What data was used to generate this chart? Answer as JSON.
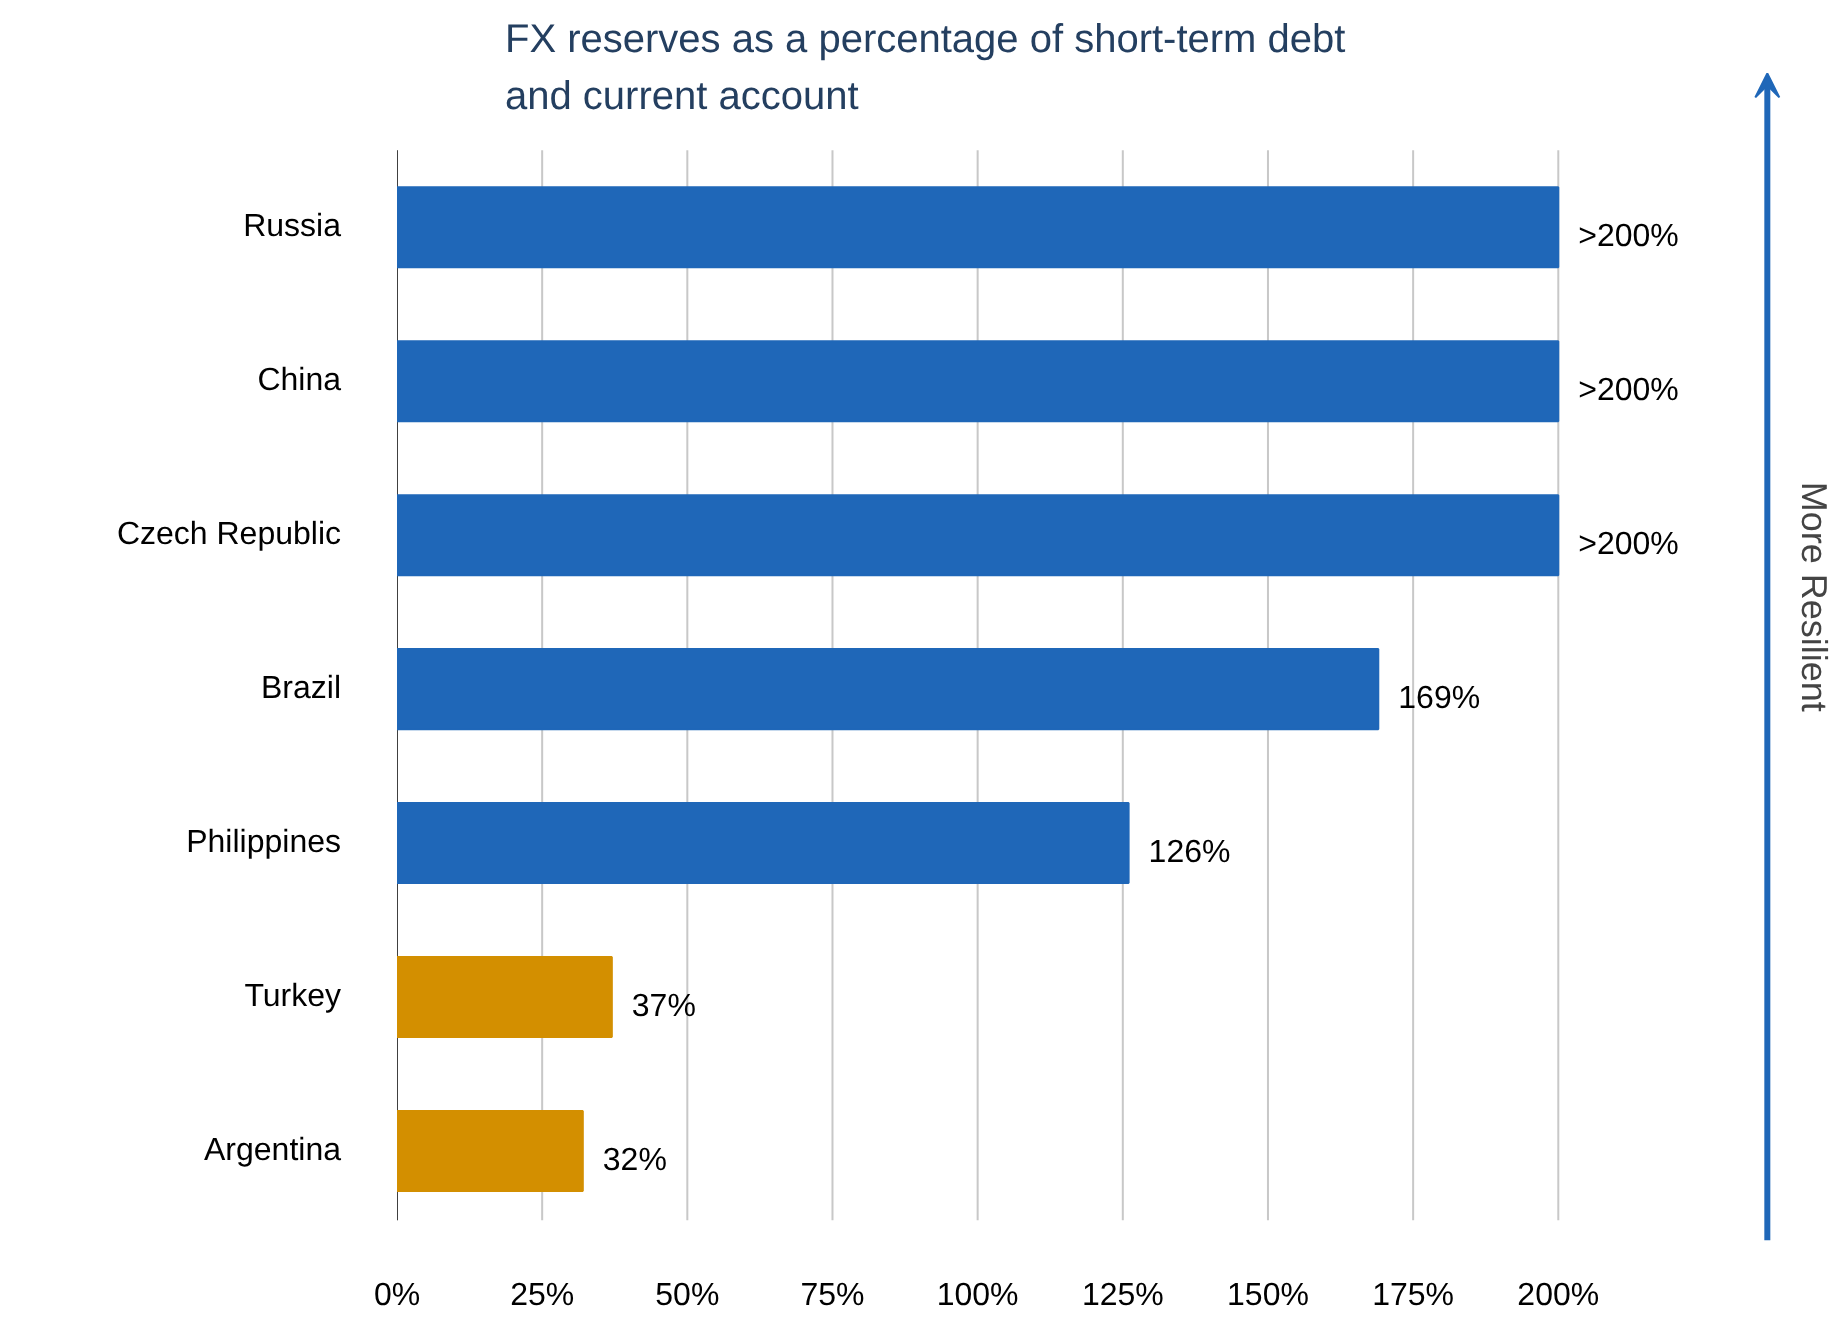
{
  "chart_data": {
    "type": "bar",
    "orientation": "horizontal",
    "title": "FX reserves as a percentage of short-term debt and current account",
    "categories": [
      "Russia",
      "China",
      "Czech Republic",
      "Brazil",
      "Philippines",
      "Turkey",
      "Argentina"
    ],
    "values": [
      200,
      200,
      200,
      169,
      126,
      37,
      32
    ],
    "value_labels": [
      ">200%",
      ">200%",
      ">200%",
      "169%",
      "126%",
      "37%",
      "32%"
    ],
    "colors": [
      "#1f67b8",
      "#1f67b8",
      "#1f67b8",
      "#1f67b8",
      "#1f67b8",
      "#d38f00",
      "#d38f00"
    ],
    "xlim": [
      0,
      200
    ],
    "xticks": [
      {
        "value": 0,
        "label": "0%"
      },
      {
        "value": 25,
        "label": "25%"
      },
      {
        "value": 50,
        "label": "50%"
      },
      {
        "value": 75,
        "label": "75%"
      },
      {
        "value": 100,
        "label": "100%"
      },
      {
        "value": 125,
        "label": "125%"
      },
      {
        "value": 150,
        "label": "150%"
      },
      {
        "value": 175,
        "label": "175%"
      },
      {
        "value": 200,
        "label": "200%"
      }
    ],
    "grid": "x",
    "annotations": [
      "More Resilient"
    ]
  }
}
